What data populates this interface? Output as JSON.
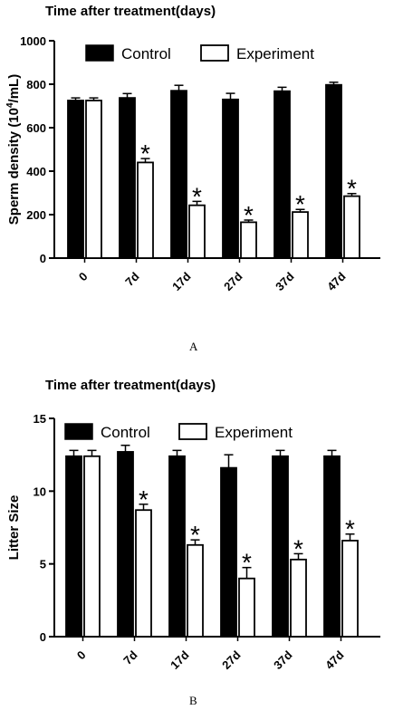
{
  "chart_data": [
    {
      "type": "bar",
      "panel_label": "A",
      "title": "Time after treatment(days)",
      "ylabel_main": "Sperm  density (10",
      "ylabel_sup": "4",
      "ylabel_end": "/mL)",
      "categories": [
        "0",
        "7d",
        "17d",
        "27d",
        "37d",
        "47d"
      ],
      "ylim": [
        0,
        1000
      ],
      "yticks": [
        0,
        200,
        400,
        600,
        800,
        1000
      ],
      "legend": [
        "Control",
        "Experiment"
      ],
      "series": [
        {
          "name": "Control",
          "values": [
            725,
            737,
            770,
            730,
            768,
            797
          ],
          "errors": [
            12,
            20,
            25,
            28,
            18,
            12
          ]
        },
        {
          "name": "Experiment",
          "values": [
            725,
            440,
            243,
            165,
            212,
            285
          ],
          "errors": [
            12,
            18,
            18,
            10,
            12,
            12
          ]
        }
      ],
      "annotations": [
        "",
        "*",
        "*",
        "*",
        "*",
        "*"
      ]
    },
    {
      "type": "bar",
      "panel_label": "B",
      "title": "Time after treatment(days)",
      "ylabel_main": "Litter Size",
      "categories": [
        "0",
        "7d",
        "17d",
        "27d",
        "37d",
        "47d"
      ],
      "ylim": [
        0,
        15
      ],
      "yticks": [
        0,
        5,
        10,
        15
      ],
      "legend": [
        "Control",
        "Experiment"
      ],
      "series": [
        {
          "name": "Control",
          "values": [
            12.4,
            12.7,
            12.4,
            11.6,
            12.4,
            12.4
          ],
          "errors": [
            0.4,
            0.45,
            0.4,
            0.9,
            0.4,
            0.4
          ]
        },
        {
          "name": "Experiment",
          "values": [
            12.4,
            8.7,
            6.3,
            4.0,
            5.3,
            6.6
          ],
          "errors": [
            0.4,
            0.4,
            0.35,
            0.75,
            0.4,
            0.45
          ]
        }
      ],
      "annotations": [
        "",
        "*",
        "*",
        "*",
        "*",
        "*"
      ]
    }
  ]
}
